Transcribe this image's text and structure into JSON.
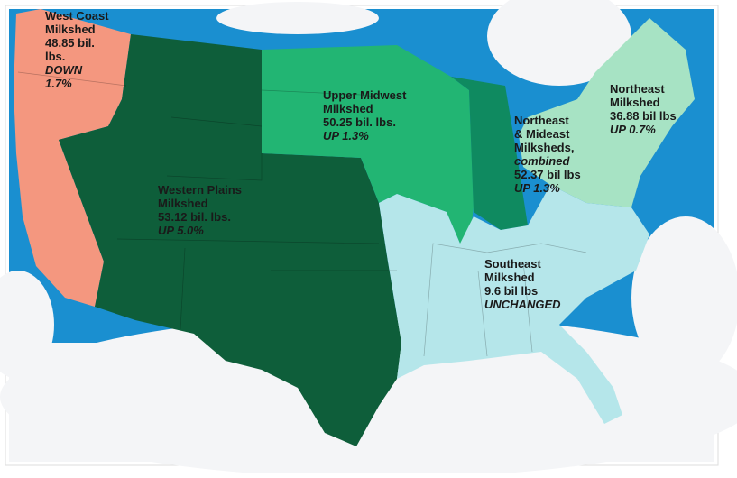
{
  "regions": [
    {
      "name": [
        "West Coast",
        "Milkshed"
      ],
      "amount": [
        "48.85 bil.",
        "lbs."
      ],
      "change": [
        "DOWN",
        "1.7%"
      ]
    },
    {
      "name": [
        "Western Plains",
        "Milkshed"
      ],
      "amount": [
        "53.12 bil. lbs."
      ],
      "change": [
        "UP 5.0%"
      ]
    },
    {
      "name": [
        "Upper Midwest",
        "Milkshed"
      ],
      "amount": [
        "50.25 bil. lbs."
      ],
      "change": [
        "UP 1.3%"
      ]
    },
    {
      "name": [
        "Northeast",
        "& Mideast",
        "Milksheds,",
        "combined"
      ],
      "amount": [
        "52.37 bil lbs"
      ],
      "change": [
        "UP 1.3%"
      ]
    },
    {
      "name": [
        "Northeast",
        "Milkshed"
      ],
      "amount": [
        "36.88 bil lbs"
      ],
      "change": [
        "UP 0.7%"
      ]
    },
    {
      "name": [
        "Southeast",
        "Milkshed"
      ],
      "amount": [
        "9.6 bil lbs"
      ],
      "change": [
        "UNCHANGED"
      ]
    }
  ]
}
